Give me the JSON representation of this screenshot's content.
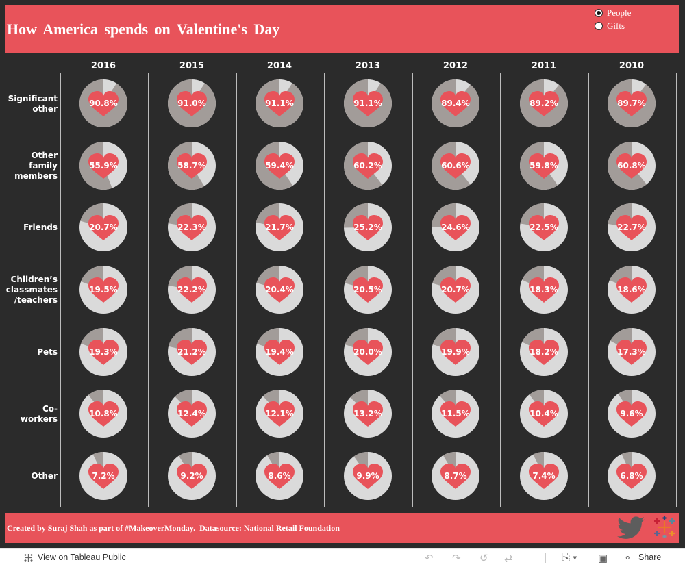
{
  "title": "How America spends on Valentine's Day",
  "toggle": {
    "options": [
      {
        "label": "People",
        "selected": true
      },
      {
        "label": "Gifts",
        "selected": false
      }
    ]
  },
  "chart_data": {
    "type": "pie",
    "columns": [
      "2016",
      "2015",
      "2014",
      "2013",
      "2012",
      "2011",
      "2010"
    ],
    "rows": [
      "Significant other",
      "Other family members",
      "Friends",
      "Children’s classmates /teachers",
      "Pets",
      "Co-workers",
      "Other"
    ],
    "row_label_lines": [
      [
        "Significant",
        "other"
      ],
      [
        "Other",
        "family",
        "members"
      ],
      [
        "Friends"
      ],
      [
        "Children’s",
        "classmates",
        "/teachers"
      ],
      [
        "Pets"
      ],
      [
        "Co-",
        "workers"
      ],
      [
        "Other"
      ]
    ],
    "values": [
      [
        90.8,
        91.0,
        91.1,
        91.1,
        89.4,
        89.2,
        89.7
      ],
      [
        55.9,
        58.7,
        59.4,
        60.2,
        60.6,
        59.8,
        60.8
      ],
      [
        20.7,
        22.3,
        21.7,
        25.2,
        24.6,
        22.5,
        22.7
      ],
      [
        19.5,
        22.2,
        20.4,
        20.5,
        20.7,
        18.3,
        18.6
      ],
      [
        19.3,
        21.2,
        19.4,
        20.0,
        19.9,
        18.2,
        17.3
      ],
      [
        10.8,
        12.4,
        12.1,
        13.2,
        11.5,
        10.4,
        9.6
      ],
      [
        7.2,
        9.2,
        8.6,
        9.9,
        8.7,
        7.4,
        6.8
      ]
    ],
    "unit": "%",
    "colors": {
      "share": "#a29c99",
      "rest": "#dadada",
      "heart": "#e8535a",
      "label": "#ffffff"
    }
  },
  "footer": {
    "credit": "Created by Suraj Shah as part of #MakeoverMonday.  Datasource: National Retail Foundation"
  },
  "toolbar": {
    "view_label": "View on Tableau Public",
    "share_label": "Share",
    "icons": [
      "tableau-logo-icon",
      "undo-icon",
      "redo-icon",
      "revert-icon",
      "refresh-icon",
      "download-icon",
      "fullscreen-icon",
      "share-icon",
      "twitter-icon",
      "tableau-brand-icon"
    ]
  }
}
